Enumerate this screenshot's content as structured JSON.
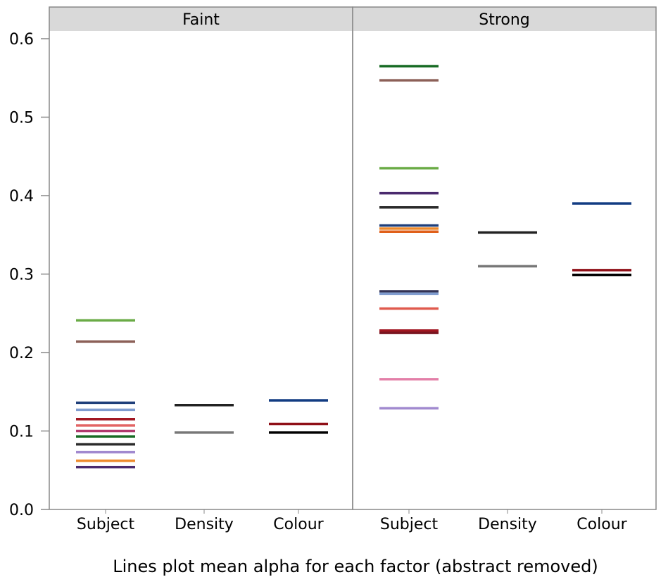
{
  "chart_data": {
    "type": "scatter",
    "xlabel": "Lines plot mean alpha for each factor (abstract removed)",
    "ylabel": "",
    "ylim": [
      0,
      0.6
    ],
    "yticks": [
      "0.0",
      "0.1",
      "0.2",
      "0.3",
      "0.4",
      "0.5",
      "0.6"
    ],
    "categories": [
      "Subject",
      "Density",
      "Colour"
    ],
    "grid": false,
    "panels": [
      {
        "name": "Faint",
        "groups": [
          {
            "category": "Subject",
            "lines": [
              {
                "value": 0.241,
                "color": "#6aab46"
              },
              {
                "value": 0.214,
                "color": "#8c6058"
              },
              {
                "value": 0.136,
                "color": "#1f3f7a"
              },
              {
                "value": 0.127,
                "color": "#7f9ccf"
              },
              {
                "value": 0.115,
                "color": "#a11621"
              },
              {
                "value": 0.107,
                "color": "#e26464"
              },
              {
                "value": 0.1,
                "color": "#b03a6e"
              },
              {
                "value": 0.093,
                "color": "#176b24"
              },
              {
                "value": 0.083,
                "color": "#2b2b2b"
              },
              {
                "value": 0.073,
                "color": "#a189cf"
              },
              {
                "value": 0.062,
                "color": "#ee8a2b"
              },
              {
                "value": 0.054,
                "color": "#4a2a6e"
              }
            ]
          },
          {
            "category": "Density",
            "lines": [
              {
                "value": 0.133,
                "color": "#222222"
              },
              {
                "value": 0.098,
                "color": "#777777"
              }
            ]
          },
          {
            "category": "Colour",
            "lines": [
              {
                "value": 0.139,
                "color": "#123c82"
              },
              {
                "value": 0.109,
                "color": "#8f0f17"
              },
              {
                "value": 0.098,
                "color": "#000000"
              }
            ]
          }
        ]
      },
      {
        "name": "Strong",
        "groups": [
          {
            "category": "Subject",
            "lines": [
              {
                "value": 0.565,
                "color": "#176b24"
              },
              {
                "value": 0.547,
                "color": "#8c6058"
              },
              {
                "value": 0.435,
                "color": "#6aab46"
              },
              {
                "value": 0.403,
                "color": "#4a2a6e"
              },
              {
                "value": 0.385,
                "color": "#2b2b2b"
              },
              {
                "value": 0.362,
                "color": "#1f3f7a"
              },
              {
                "value": 0.358,
                "color": "#ee8a2b"
              },
              {
                "value": 0.354,
                "color": "#e0601a"
              },
              {
                "value": 0.278,
                "color": "#333355"
              },
              {
                "value": 0.275,
                "color": "#7f9ccf"
              },
              {
                "value": 0.256,
                "color": "#e05a4e"
              },
              {
                "value": 0.228,
                "color": "#a11621"
              },
              {
                "value": 0.225,
                "color": "#7a1420"
              },
              {
                "value": 0.166,
                "color": "#e37fa8"
              },
              {
                "value": 0.129,
                "color": "#a189cf"
              }
            ]
          },
          {
            "category": "Density",
            "lines": [
              {
                "value": 0.353,
                "color": "#222222"
              },
              {
                "value": 0.31,
                "color": "#777777"
              }
            ]
          },
          {
            "category": "Colour",
            "lines": [
              {
                "value": 0.39,
                "color": "#123c82"
              },
              {
                "value": 0.305,
                "color": "#8f0f17"
              },
              {
                "value": 0.299,
                "color": "#000000"
              }
            ]
          }
        ]
      }
    ]
  }
}
